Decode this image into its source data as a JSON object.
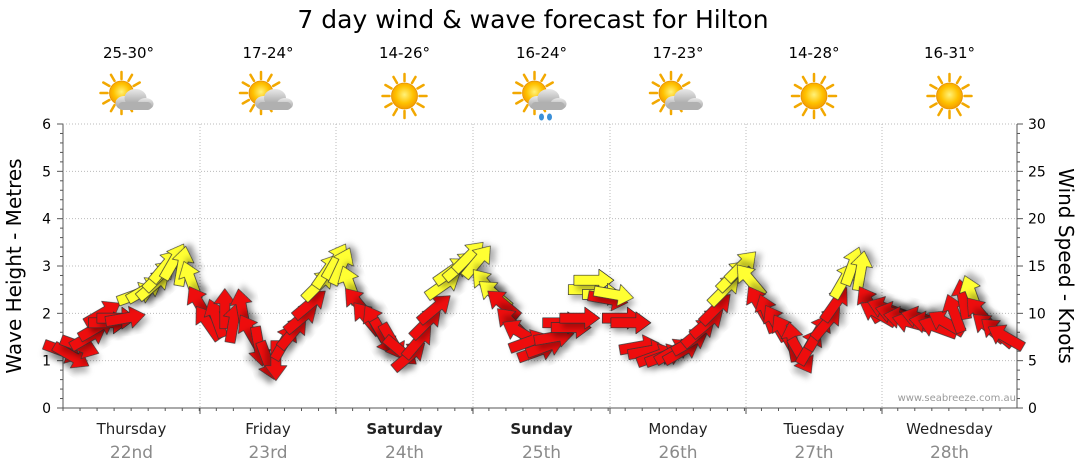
{
  "chart_data": {
    "type": "line",
    "title": "7 day wind & wave forecast for Hilton",
    "ylabel_left": "Wave Height - Metres",
    "ylabel_right": "Wind Speed - Knots",
    "ylim_left": [
      0,
      6
    ],
    "ylim_right": [
      0,
      30
    ],
    "yticks_left": [
      "0",
      "1",
      "2",
      "3",
      "4",
      "5",
      "6"
    ],
    "yticks_right": [
      "0",
      "5",
      "10",
      "15",
      "20",
      "25",
      "30"
    ],
    "grid": true,
    "credit": "www.seabreeze.com.au",
    "days": [
      {
        "day": "Thursday",
        "date": "22nd",
        "temp": "25-30°",
        "weather": "partly-cloudy-icon",
        "bold": false
      },
      {
        "day": "Friday",
        "date": "23rd",
        "temp": "17-24°",
        "weather": "partly-cloudy-icon",
        "bold": false
      },
      {
        "day": "Saturday",
        "date": "24th",
        "temp": "14-26°",
        "weather": "sunny-icon",
        "bold": true
      },
      {
        "day": "Sunday",
        "date": "25th",
        "temp": "16-24°",
        "weather": "showers-icon",
        "bold": true
      },
      {
        "day": "Monday",
        "date": "26th",
        "temp": "17-23°",
        "weather": "partly-cloudy-icon",
        "bold": false
      },
      {
        "day": "Tuesday",
        "date": "27th",
        "temp": "14-28°",
        "weather": "sunny-icon",
        "bold": false
      },
      {
        "day": "Wednesday",
        "date": "28th",
        "temp": "16-31°",
        "weather": "sunny-icon",
        "bold": false
      }
    ],
    "series": [
      {
        "name": "Wind",
        "note": "t = hours from start of Thursday; speed in knots; dir = arrow angle in degrees (0 = pointing right, positive = counter-clockwise)",
        "points": [
          {
            "t": 0,
            "speed": 6,
            "dir": -20
          },
          {
            "t": 1.5,
            "speed": 5.5,
            "dir": -30
          },
          {
            "t": 3,
            "speed": 6.5,
            "dir": -20
          },
          {
            "t": 4.5,
            "speed": 7.5,
            "dir": 30
          },
          {
            "t": 6,
            "speed": 8.5,
            "dir": 30
          },
          {
            "t": 7,
            "speed": 10,
            "dir": 30
          },
          {
            "t": 8,
            "speed": 9,
            "dir": 0
          },
          {
            "t": 9.5,
            "speed": 9.5,
            "dir": 0
          },
          {
            "t": 11,
            "speed": 9.5,
            "dir": 10
          },
          {
            "t": 13,
            "speed": 12,
            "dir": 20
          },
          {
            "t": 14.5,
            "speed": 12.5,
            "dir": 30
          },
          {
            "t": 16,
            "speed": 13,
            "dir": 40
          },
          {
            "t": 17,
            "speed": 14,
            "dir": 45
          },
          {
            "t": 18,
            "speed": 15,
            "dir": 50
          },
          {
            "t": 19.5,
            "speed": 15.5,
            "dir": 60
          },
          {
            "t": 21,
            "speed": 15,
            "dir": 80
          },
          {
            "t": 22.5,
            "speed": 13.5,
            "dir": 110
          },
          {
            "t": 24,
            "speed": 11,
            "dir": 120
          },
          {
            "t": 25.5,
            "speed": 9,
            "dir": 125
          },
          {
            "t": 27,
            "speed": 9.5,
            "dir": 110
          },
          {
            "t": 28.5,
            "speed": 10.5,
            "dir": 90
          },
          {
            "t": 30,
            "speed": 9,
            "dir": 80
          },
          {
            "t": 31.5,
            "speed": 10.5,
            "dir": 100
          },
          {
            "t": 33,
            "speed": 8,
            "dir": 120
          },
          {
            "t": 34.5,
            "speed": 6.5,
            "dir": -80
          },
          {
            "t": 36,
            "speed": 5,
            "dir": -70
          },
          {
            "t": 37.5,
            "speed": 5,
            "dir": -90
          },
          {
            "t": 39,
            "speed": 7,
            "dir": 60
          },
          {
            "t": 40.5,
            "speed": 8,
            "dir": 50
          },
          {
            "t": 42,
            "speed": 9.5,
            "dir": 40
          },
          {
            "t": 43.5,
            "speed": 11,
            "dir": 40
          },
          {
            "t": 45,
            "speed": 13,
            "dir": 45
          },
          {
            "t": 46.5,
            "speed": 14.5,
            "dir": 55
          },
          {
            "t": 48,
            "speed": 15.5,
            "dir": 60
          },
          {
            "t": 49,
            "speed": 15,
            "dir": 65
          },
          {
            "t": 50.5,
            "speed": 13,
            "dir": 110
          },
          {
            "t": 52,
            "speed": 11,
            "dir": 130
          },
          {
            "t": 53.5,
            "speed": 9.5,
            "dir": 130
          },
          {
            "t": 55,
            "speed": 9,
            "dir": 120
          },
          {
            "t": 56.5,
            "speed": 7.5,
            "dir": -60
          },
          {
            "t": 58,
            "speed": 7,
            "dir": -60
          },
          {
            "t": 59.5,
            "speed": 6,
            "dir": -40
          },
          {
            "t": 61,
            "speed": 5.5,
            "dir": 40
          },
          {
            "t": 62.5,
            "speed": 7,
            "dir": 50
          },
          {
            "t": 64,
            "speed": 9,
            "dir": 45
          },
          {
            "t": 65.5,
            "speed": 10.5,
            "dir": 40
          },
          {
            "t": 67,
            "speed": 13,
            "dir": 35
          },
          {
            "t": 68.5,
            "speed": 14.5,
            "dir": 35
          },
          {
            "t": 70,
            "speed": 15,
            "dir": 40
          },
          {
            "t": 71.5,
            "speed": 16,
            "dir": 45
          },
          {
            "t": 73,
            "speed": 15.5,
            "dir": 50
          },
          {
            "t": 74.5,
            "speed": 13,
            "dir": 130
          },
          {
            "t": 76,
            "speed": 12,
            "dir": 140
          },
          {
            "t": 77.5,
            "speed": 11,
            "dir": 140
          },
          {
            "t": 79,
            "speed": 9,
            "dir": 135
          },
          {
            "t": 80.5,
            "speed": 8,
            "dir": 150
          },
          {
            "t": 82,
            "speed": 7,
            "dir": 20
          },
          {
            "t": 83.5,
            "speed": 6,
            "dir": 20
          },
          {
            "t": 85,
            "speed": 6.5,
            "dir": 20
          },
          {
            "t": 86.5,
            "speed": 7.5,
            "dir": 10
          },
          {
            "t": 88,
            "speed": 9,
            "dir": 0
          },
          {
            "t": 89.5,
            "speed": 8.5,
            "dir": 0
          },
          {
            "t": 91,
            "speed": 9.5,
            "dir": 0
          },
          {
            "t": 92.5,
            "speed": 12.5,
            "dir": 0
          },
          {
            "t": 93.5,
            "speed": 13.5,
            "dir": 0
          },
          {
            "t": 95,
            "speed": 12,
            "dir": 0
          },
          {
            "t": 96,
            "speed": 11.5,
            "dir": -10
          },
          {
            "t": 97,
            "speed": 12,
            "dir": -10
          },
          {
            "t": 98.5,
            "speed": 9.5,
            "dir": 0
          },
          {
            "t": 100,
            "speed": 9,
            "dir": 0
          },
          {
            "t": 101.5,
            "speed": 6.5,
            "dir": 10
          },
          {
            "t": 103,
            "speed": 6,
            "dir": 10
          },
          {
            "t": 104.5,
            "speed": 5.5,
            "dir": 20
          },
          {
            "t": 106,
            "speed": 5.5,
            "dir": 20
          },
          {
            "t": 107.5,
            "speed": 6,
            "dir": 30
          },
          {
            "t": 109,
            "speed": 6,
            "dir": 30
          },
          {
            "t": 110.5,
            "speed": 7,
            "dir": 30
          },
          {
            "t": 112,
            "speed": 8,
            "dir": 40
          },
          {
            "t": 113.5,
            "speed": 9,
            "dir": 40
          },
          {
            "t": 115,
            "speed": 10.5,
            "dir": 45
          },
          {
            "t": 116.5,
            "speed": 12.5,
            "dir": 45
          },
          {
            "t": 118,
            "speed": 14,
            "dir": 45
          },
          {
            "t": 119.5,
            "speed": 15,
            "dir": 45
          },
          {
            "t": 121,
            "speed": 13.5,
            "dir": 130
          },
          {
            "t": 122.5,
            "speed": 11,
            "dir": 120
          },
          {
            "t": 124,
            "speed": 10,
            "dir": 110
          },
          {
            "t": 125.5,
            "speed": 9,
            "dir": 120
          },
          {
            "t": 127,
            "speed": 8,
            "dir": 120
          },
          {
            "t": 128.5,
            "speed": 7,
            "dir": 100
          },
          {
            "t": 130,
            "speed": 5.5,
            "dir": -60
          },
          {
            "t": 131.5,
            "speed": 6.5,
            "dir": 60
          },
          {
            "t": 133,
            "speed": 8,
            "dir": 60
          },
          {
            "t": 134.5,
            "speed": 9,
            "dir": 50
          },
          {
            "t": 136,
            "speed": 11,
            "dir": 55
          },
          {
            "t": 137.5,
            "speed": 13.5,
            "dir": 60
          },
          {
            "t": 139,
            "speed": 15,
            "dir": 70
          },
          {
            "t": 140.5,
            "speed": 14.5,
            "dir": 80
          },
          {
            "t": 142,
            "speed": 11,
            "dir": 120
          },
          {
            "t": 143.5,
            "speed": 10,
            "dir": 150
          },
          {
            "t": 145,
            "speed": 10.5,
            "dir": 160
          },
          {
            "t": 146.5,
            "speed": 10,
            "dir": 165
          },
          {
            "t": 148,
            "speed": 9.5,
            "dir": 170
          },
          {
            "t": 149.5,
            "speed": 9,
            "dir": 165
          },
          {
            "t": 151,
            "speed": 9.5,
            "dir": 165
          },
          {
            "t": 152.5,
            "speed": 9,
            "dir": 170
          },
          {
            "t": 154,
            "speed": 8.5,
            "dir": 160
          },
          {
            "t": 155.5,
            "speed": 9,
            "dir": 150
          },
          {
            "t": 157,
            "speed": 10,
            "dir": 110
          },
          {
            "t": 158.5,
            "speed": 11.5,
            "dir": 100
          },
          {
            "t": 160,
            "speed": 12,
            "dir": 110
          },
          {
            "t": 161.5,
            "speed": 10,
            "dir": 130
          },
          {
            "t": 163,
            "speed": 8.5,
            "dir": 140
          },
          {
            "t": 164.5,
            "speed": 8,
            "dir": 140
          },
          {
            "t": 166,
            "speed": 7.5,
            "dir": 150
          }
        ]
      }
    ],
    "colors": {
      "strong": "#ee1111",
      "light": "#ffff33",
      "outline": "#333333",
      "grid": "#bbbbbb",
      "axis": "#555555"
    }
  }
}
